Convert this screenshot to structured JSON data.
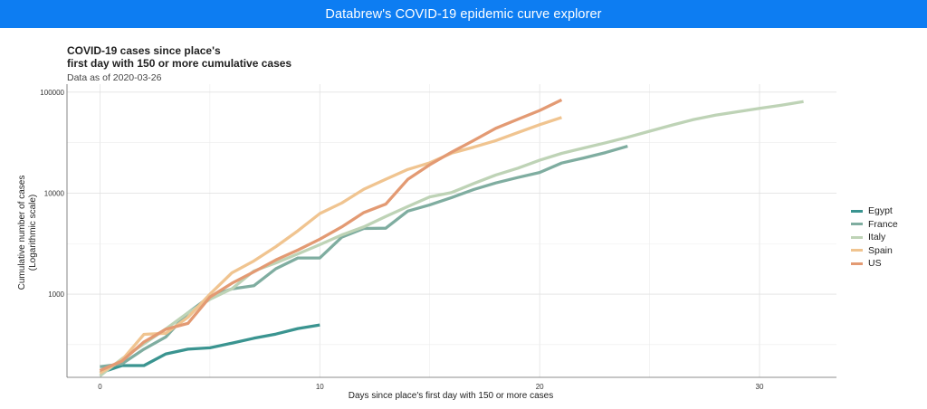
{
  "header": {
    "title": "Databrew's COVID-19 epidemic curve explorer"
  },
  "chart_data": {
    "type": "line",
    "title_lines": [
      "COVID-19 cases since place's",
      "first day with 150 or more cumulative cases"
    ],
    "subtitle": "Data as of 2020-03-26",
    "xlabel": "Days since place's first day with 150 or more cases",
    "ylabel_lines": [
      "Cumulative number of cases",
      "(Logarithmic scale)"
    ],
    "x_scale": "linear",
    "y_scale": "log10",
    "xlim": [
      -1.5,
      33.5
    ],
    "ylim": [
      150,
      120000
    ],
    "x_ticks": [
      0,
      10,
      20,
      30
    ],
    "x_tick_labels": [
      "0",
      "10",
      "20",
      "30"
    ],
    "y_ticks": [
      1000,
      10000,
      100000
    ],
    "y_tick_labels": [
      "1000",
      "10000",
      "100000"
    ],
    "grid": true,
    "legend_position": "right",
    "series": [
      {
        "name": "Egypt",
        "color": "#3a9490",
        "x": [
          0,
          1,
          2,
          3,
          4,
          5,
          6,
          7,
          8,
          9,
          10
        ],
        "y": [
          166,
          196,
          196,
          256,
          285,
          294,
          327,
          366,
          402,
          456,
          495
        ]
      },
      {
        "name": "France",
        "color": "#7fada0",
        "x": [
          0,
          1,
          2,
          3,
          4,
          5,
          6,
          7,
          8,
          9,
          10,
          11,
          12,
          13,
          14,
          15,
          16,
          17,
          18,
          19,
          20,
          21,
          22,
          23,
          24
        ],
        "y": [
          191,
          204,
          285,
          377,
          653,
          949,
          1126,
          1209,
          1784,
          2281,
          2281,
          3661,
          4469,
          4499,
          6633,
          7652,
          9043,
          10871,
          12612,
          14282,
          16018,
          19856,
          22304,
          25233,
          29155
        ]
      },
      {
        "name": "Italy",
        "color": "#bed3b6",
        "x": [
          0,
          1,
          2,
          3,
          4,
          5,
          6,
          7,
          8,
          9,
          10,
          11,
          12,
          13,
          14,
          15,
          16,
          17,
          18,
          19,
          20,
          21,
          22,
          23,
          24,
          25,
          26,
          27,
          28,
          29,
          30,
          31,
          32
        ],
        "y": [
          155,
          229,
          322,
          453,
          655,
          888,
          1128,
          1694,
          2036,
          2502,
          3089,
          3858,
          4636,
          5883,
          7375,
          9172,
          10149,
          12462,
          15113,
          17660,
          21157,
          24747,
          27980,
          31506,
          35713,
          41035,
          47021,
          53578,
          59138,
          63927,
          69176,
          74386,
          80589
        ]
      },
      {
        "name": "Spain",
        "color": "#f0c490",
        "x": [
          0,
          1,
          2,
          3,
          4,
          5,
          6,
          7,
          8,
          9,
          10,
          11,
          12,
          13,
          14,
          15,
          16,
          17,
          18,
          19,
          20,
          21
        ],
        "y": [
          165,
          222,
          400,
          410,
          589,
          999,
          1622,
          2128,
          2950,
          4231,
          6276,
          7988,
          10942,
          13716,
          17147,
          19980,
          24926,
          28572,
          33089,
          39673,
          47610,
          56188
        ]
      },
      {
        "name": "US",
        "color": "#e39a73",
        "x": [
          0,
          1,
          2,
          3,
          4,
          5,
          6,
          7,
          8,
          9,
          10,
          11,
          12,
          13,
          14,
          15,
          16,
          17,
          18,
          19,
          20,
          21
        ],
        "y": [
          175,
          217,
          336,
          450,
          513,
          936,
          1280,
          1663,
          2179,
          2727,
          3499,
          4632,
          6421,
          7783,
          13677,
          19100,
          25489,
          33276,
          43847,
          53740,
          65778,
          83836
        ]
      }
    ]
  }
}
